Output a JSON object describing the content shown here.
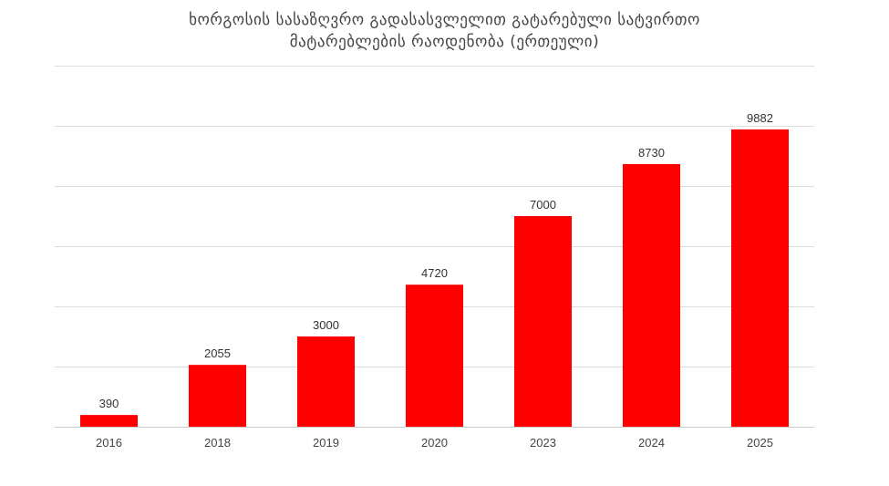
{
  "chart_data": {
    "type": "bar",
    "title_lines": [
      "ხორგოსის სასაზღვრო გადასასვლელით გატარებული სატვირთო",
      "მატარებლების რაოდენობა (ერთეული)"
    ],
    "categories": [
      "2016",
      "2018",
      "2019",
      "2020",
      "2023",
      "2024",
      "2025"
    ],
    "values": [
      390,
      2055,
      3000,
      4720,
      7000,
      8730,
      9882
    ],
    "data_labels": [
      "390",
      "2055",
      "3000",
      "4720",
      "7000",
      "8730",
      "9882"
    ],
    "ylim": [
      0,
      12000
    ],
    "grid": true,
    "bar_color": "#ff0000",
    "xlabel": "",
    "ylabel": ""
  }
}
